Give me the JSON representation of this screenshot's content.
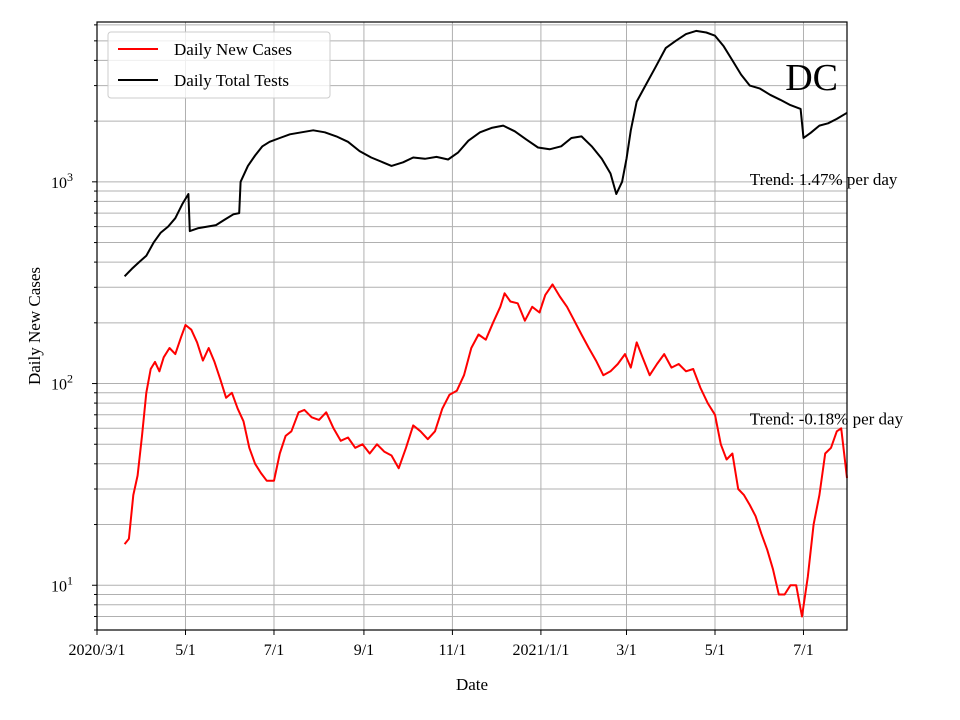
{
  "chart_data": {
    "type": "line",
    "title": "",
    "region_label": "DC",
    "xlabel": "Date",
    "ylabel": "Daily New Cases",
    "y_scale": "log",
    "ylim": [
      6,
      6200
    ],
    "xlim": [
      "2020-03-01",
      "2021-07-31"
    ],
    "grid": true,
    "legend_position": "top-left",
    "x_ticks": [
      {
        "date": "2020-03-01",
        "label": "2020/3/1"
      },
      {
        "date": "2020-05-01",
        "label": "5/1"
      },
      {
        "date": "2020-07-01",
        "label": "7/1"
      },
      {
        "date": "2020-09-01",
        "label": "9/1"
      },
      {
        "date": "2020-11-01",
        "label": "11/1"
      },
      {
        "date": "2021-01-01",
        "label": "2021/1/1"
      },
      {
        "date": "2021-03-01",
        "label": "3/1"
      },
      {
        "date": "2021-05-01",
        "label": "5/1"
      },
      {
        "date": "2021-07-01",
        "label": "7/1"
      }
    ],
    "y_ticks": [
      {
        "value": 10,
        "base": "10",
        "exp": "1"
      },
      {
        "value": 100,
        "base": "10",
        "exp": "2"
      },
      {
        "value": 1000,
        "base": "10",
        "exp": "3"
      }
    ],
    "series": [
      {
        "name": "Daily New Cases",
        "color": "#ff0000",
        "points": [
          [
            "2020-03-20",
            16
          ],
          [
            "2020-03-23",
            17
          ],
          [
            "2020-03-26",
            28
          ],
          [
            "2020-03-29",
            35
          ],
          [
            "2020-04-01",
            55
          ],
          [
            "2020-04-04",
            90
          ],
          [
            "2020-04-07",
            118
          ],
          [
            "2020-04-10",
            128
          ],
          [
            "2020-04-13",
            115
          ],
          [
            "2020-04-16",
            135
          ],
          [
            "2020-04-20",
            150
          ],
          [
            "2020-04-24",
            140
          ],
          [
            "2020-04-28",
            170
          ],
          [
            "2020-05-01",
            195
          ],
          [
            "2020-05-05",
            185
          ],
          [
            "2020-05-09",
            160
          ],
          [
            "2020-05-13",
            130
          ],
          [
            "2020-05-17",
            150
          ],
          [
            "2020-05-21",
            128
          ],
          [
            "2020-05-25",
            105
          ],
          [
            "2020-05-29",
            85
          ],
          [
            "2020-06-02",
            90
          ],
          [
            "2020-06-06",
            75
          ],
          [
            "2020-06-10",
            65
          ],
          [
            "2020-06-14",
            48
          ],
          [
            "2020-06-18",
            40
          ],
          [
            "2020-06-22",
            36
          ],
          [
            "2020-06-26",
            33
          ],
          [
            "2020-07-01",
            33
          ],
          [
            "2020-07-05",
            45
          ],
          [
            "2020-07-09",
            55
          ],
          [
            "2020-07-13",
            58
          ],
          [
            "2020-07-18",
            72
          ],
          [
            "2020-07-22",
            74
          ],
          [
            "2020-07-27",
            68
          ],
          [
            "2020-08-01",
            66
          ],
          [
            "2020-08-06",
            72
          ],
          [
            "2020-08-11",
            60
          ],
          [
            "2020-08-16",
            52
          ],
          [
            "2020-08-21",
            54
          ],
          [
            "2020-08-26",
            48
          ],
          [
            "2020-08-31",
            50
          ],
          [
            "2020-09-05",
            45
          ],
          [
            "2020-09-10",
            50
          ],
          [
            "2020-09-15",
            46
          ],
          [
            "2020-09-20",
            44
          ],
          [
            "2020-09-25",
            38
          ],
          [
            "2020-09-30",
            48
          ],
          [
            "2020-10-05",
            62
          ],
          [
            "2020-10-10",
            58
          ],
          [
            "2020-10-15",
            53
          ],
          [
            "2020-10-20",
            58
          ],
          [
            "2020-10-25",
            75
          ],
          [
            "2020-10-30",
            88
          ],
          [
            "2020-11-04",
            92
          ],
          [
            "2020-11-09",
            110
          ],
          [
            "2020-11-14",
            150
          ],
          [
            "2020-11-19",
            175
          ],
          [
            "2020-11-24",
            165
          ],
          [
            "2020-11-29",
            200
          ],
          [
            "2020-12-04",
            240
          ],
          [
            "2020-12-07",
            280
          ],
          [
            "2020-12-11",
            255
          ],
          [
            "2020-12-16",
            250
          ],
          [
            "2020-12-21",
            205
          ],
          [
            "2020-12-26",
            240
          ],
          [
            "2020-12-31",
            225
          ],
          [
            "2021-01-04",
            275
          ],
          [
            "2021-01-09",
            310
          ],
          [
            "2021-01-14",
            270
          ],
          [
            "2021-01-19",
            240
          ],
          [
            "2021-01-24",
            205
          ],
          [
            "2021-01-29",
            175
          ],
          [
            "2021-02-03",
            150
          ],
          [
            "2021-02-08",
            130
          ],
          [
            "2021-02-13",
            110
          ],
          [
            "2021-02-18",
            115
          ],
          [
            "2021-02-23",
            125
          ],
          [
            "2021-02-28",
            140
          ],
          [
            "2021-03-04",
            120
          ],
          [
            "2021-03-08",
            160
          ],
          [
            "2021-03-12",
            135
          ],
          [
            "2021-03-17",
            110
          ],
          [
            "2021-03-22",
            125
          ],
          [
            "2021-03-27",
            140
          ],
          [
            "2021-04-01",
            120
          ],
          [
            "2021-04-06",
            125
          ],
          [
            "2021-04-11",
            115
          ],
          [
            "2021-04-16",
            118
          ],
          [
            "2021-04-21",
            95
          ],
          [
            "2021-04-26",
            80
          ],
          [
            "2021-05-01",
            70
          ],
          [
            "2021-05-05",
            50
          ],
          [
            "2021-05-09",
            42
          ],
          [
            "2021-05-13",
            45
          ],
          [
            "2021-05-17",
            30
          ],
          [
            "2021-05-21",
            28
          ],
          [
            "2021-05-25",
            25
          ],
          [
            "2021-05-29",
            22
          ],
          [
            "2021-06-02",
            18
          ],
          [
            "2021-06-06",
            15
          ],
          [
            "2021-06-10",
            12
          ],
          [
            "2021-06-14",
            9
          ],
          [
            "2021-06-18",
            9
          ],
          [
            "2021-06-22",
            10
          ],
          [
            "2021-06-26",
            10
          ],
          [
            "2021-06-30",
            7
          ],
          [
            "2021-07-04",
            11
          ],
          [
            "2021-07-08",
            20
          ],
          [
            "2021-07-12",
            28
          ],
          [
            "2021-07-16",
            45
          ],
          [
            "2021-07-20",
            48
          ],
          [
            "2021-07-24",
            58
          ],
          [
            "2021-07-27",
            60
          ],
          [
            "2021-07-31",
            34
          ]
        ]
      },
      {
        "name": "Daily Total Tests",
        "color": "#000000",
        "points": [
          [
            "2020-03-20",
            340
          ],
          [
            "2020-03-25",
            370
          ],
          [
            "2020-03-30",
            400
          ],
          [
            "2020-04-04",
            430
          ],
          [
            "2020-04-09",
            500
          ],
          [
            "2020-04-14",
            560
          ],
          [
            "2020-04-19",
            600
          ],
          [
            "2020-04-24",
            660
          ],
          [
            "2020-04-29",
            780
          ],
          [
            "2020-05-03",
            870
          ],
          [
            "2020-05-04",
            570
          ],
          [
            "2020-05-10",
            590
          ],
          [
            "2020-05-16",
            600
          ],
          [
            "2020-05-22",
            610
          ],
          [
            "2020-05-28",
            650
          ],
          [
            "2020-06-03",
            690
          ],
          [
            "2020-06-07",
            700
          ],
          [
            "2020-06-08",
            1000
          ],
          [
            "2020-06-13",
            1200
          ],
          [
            "2020-06-18",
            1350
          ],
          [
            "2020-06-23",
            1500
          ],
          [
            "2020-06-28",
            1580
          ],
          [
            "2020-07-05",
            1650
          ],
          [
            "2020-07-12",
            1720
          ],
          [
            "2020-07-20",
            1760
          ],
          [
            "2020-07-28",
            1800
          ],
          [
            "2020-08-05",
            1760
          ],
          [
            "2020-08-13",
            1680
          ],
          [
            "2020-08-21",
            1580
          ],
          [
            "2020-08-29",
            1420
          ],
          [
            "2020-09-06",
            1320
          ],
          [
            "2020-09-14",
            1250
          ],
          [
            "2020-09-20",
            1200
          ],
          [
            "2020-09-28",
            1250
          ],
          [
            "2020-10-05",
            1320
          ],
          [
            "2020-10-13",
            1300
          ],
          [
            "2020-10-21",
            1330
          ],
          [
            "2020-10-29",
            1290
          ],
          [
            "2020-11-05",
            1400
          ],
          [
            "2020-11-12",
            1600
          ],
          [
            "2020-11-20",
            1760
          ],
          [
            "2020-11-28",
            1850
          ],
          [
            "2020-12-06",
            1900
          ],
          [
            "2020-12-14",
            1780
          ],
          [
            "2020-12-22",
            1620
          ],
          [
            "2020-12-30",
            1480
          ],
          [
            "2021-01-07",
            1450
          ],
          [
            "2021-01-15",
            1500
          ],
          [
            "2021-01-22",
            1650
          ],
          [
            "2021-01-29",
            1680
          ],
          [
            "2021-02-05",
            1500
          ],
          [
            "2021-02-12",
            1300
          ],
          [
            "2021-02-18",
            1100
          ],
          [
            "2021-02-22",
            870
          ],
          [
            "2021-02-26",
            1000
          ],
          [
            "2021-03-01",
            1300
          ],
          [
            "2021-03-04",
            1800
          ],
          [
            "2021-03-08",
            2500
          ],
          [
            "2021-03-14",
            3000
          ],
          [
            "2021-03-21",
            3700
          ],
          [
            "2021-03-28",
            4600
          ],
          [
            "2021-04-04",
            5000
          ],
          [
            "2021-04-11",
            5400
          ],
          [
            "2021-04-18",
            5600
          ],
          [
            "2021-04-25",
            5500
          ],
          [
            "2021-05-01",
            5300
          ],
          [
            "2021-05-07",
            4700
          ],
          [
            "2021-05-13",
            4000
          ],
          [
            "2021-05-19",
            3400
          ],
          [
            "2021-05-25",
            3000
          ],
          [
            "2021-06-01",
            2900
          ],
          [
            "2021-06-08",
            2700
          ],
          [
            "2021-06-15",
            2550
          ],
          [
            "2021-06-22",
            2400
          ],
          [
            "2021-06-29",
            2300
          ],
          [
            "2021-07-01",
            1650
          ],
          [
            "2021-07-06",
            1750
          ],
          [
            "2021-07-12",
            1900
          ],
          [
            "2021-07-18",
            1950
          ],
          [
            "2021-07-24",
            2050
          ],
          [
            "2021-07-31",
            2200
          ]
        ]
      }
    ],
    "annotations": [
      {
        "text": "Trend: 1.47% per day",
        "date": "2021-05-25",
        "value": 1000
      },
      {
        "text": "Trend: -0.18% per day",
        "date": "2021-05-25",
        "value": 65
      }
    ]
  }
}
